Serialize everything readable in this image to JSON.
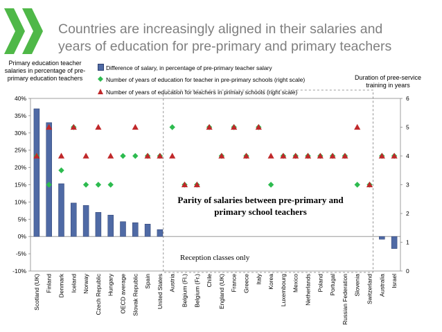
{
  "title_lines": [
    "Countries are increasingly aligned in their salaries and",
    "years of education for pre-primary and primary teachers"
  ],
  "colors": {
    "title": "#7f7f7f",
    "bar": "#4f6aa5",
    "green": "#2dbb4f",
    "red": "#c0282a",
    "logo": "#4fb848"
  },
  "chart_data": {
    "type": "bar",
    "title": "Countries are increasingly aligned in their salaries and years of education for pre-primary and primary teachers",
    "left_axis_title": "Primary education teacher salaries in percentage of pre-primary education teachers",
    "right_axis_title": "Duration of pree-service training in years",
    "left_ticks": [
      "40%",
      "35%",
      "30%",
      "25%",
      "20%",
      "15%",
      "10%",
      "5%",
      "0%",
      "-5%",
      "-10%"
    ],
    "right_ticks": [
      "6",
      "5",
      "4",
      "3",
      "2",
      "1",
      "0"
    ],
    "ylim": [
      -10,
      40
    ],
    "y2lim": [
      0,
      6
    ],
    "categories": [
      "Scotland (UK)",
      "Finland",
      "Denmark",
      "Iceland",
      "Norway",
      "Czech Republic",
      "Hungary",
      "OECD average",
      "Slovak Republic",
      "Spain",
      "United States",
      "Austria",
      "Belgium (Fl.)",
      "Belgium (Fr.)",
      "Chile",
      "England (UK)",
      "France",
      "Greece",
      "Italy",
      "Korea",
      "Luxembourg",
      "Mexico",
      "Netherlands",
      "Poland",
      "Portugal",
      "Russian Federation",
      "Slovenia",
      "Switzerland",
      "Australia",
      "Israel"
    ],
    "series": [
      {
        "name": "Difference of salary, in percentage of pre-primary teacher salary",
        "axis": "left",
        "kind": "bar",
        "values": [
          37,
          33,
          15.3,
          9.7,
          9,
          7,
          6.2,
          4.3,
          4,
          3.6,
          2,
          null,
          null,
          null,
          null,
          null,
          null,
          null,
          null,
          null,
          null,
          null,
          null,
          null,
          null,
          null,
          null,
          null,
          -0.8,
          -3.5
        ]
      },
      {
        "name": "Number of years of education for teacher in pre-primary schools (right scale)",
        "axis": "right",
        "kind": "diamond",
        "values": [
          4,
          3,
          3.5,
          5,
          3,
          3,
          3,
          4,
          4,
          4,
          4,
          5,
          3,
          3,
          5,
          4,
          5,
          4,
          5,
          3,
          4,
          4,
          4,
          4,
          4,
          4,
          3,
          3,
          4,
          4
        ]
      },
      {
        "name": "Number of years of education for teachers in primary schools (right scale)",
        "axis": "right",
        "kind": "triangle",
        "values": [
          4,
          5,
          4,
          5,
          4,
          5,
          4,
          null,
          5,
          4,
          4,
          4,
          3,
          3,
          5,
          4,
          5,
          4,
          5,
          4,
          4,
          4,
          4,
          4,
          4,
          4,
          5,
          3,
          4,
          4
        ]
      }
    ],
    "annotations": {
      "parity": "Parity of salaries between pre-primary and primary school teachers",
      "reception": "Reception classes only"
    }
  }
}
